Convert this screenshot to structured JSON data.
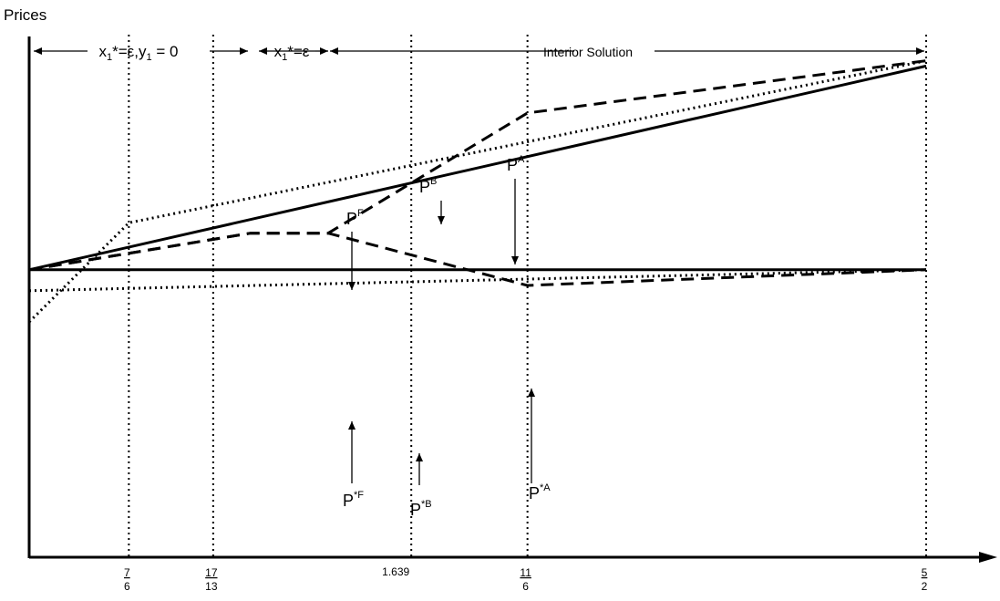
{
  "chart_data": {
    "type": "line",
    "title": "",
    "ylabel": "Prices",
    "xlabel": "",
    "xlim": [
      1,
      2.5
    ],
    "ylim": [
      0,
      1
    ],
    "grid": false,
    "x_ticks": [
      {
        "value": 1.1667,
        "num": "7",
        "den": "6"
      },
      {
        "value": 1.3077,
        "num": "17",
        "den": "13"
      },
      {
        "value": 1.639,
        "plain": "1.639"
      },
      {
        "value": 1.8333,
        "num": "11",
        "den": "6"
      },
      {
        "value": 2.5,
        "num": "5",
        "den": "2"
      }
    ],
    "vertical_guides": [
      1.1667,
      1.3077,
      1.639,
      1.8333,
      2.5
    ],
    "regions": [
      {
        "label_main": "x",
        "label_sub": "1",
        "label_rest": "*=ε,y",
        "label_sub2": "1",
        "label_tail": " = 0",
        "from": 1.0,
        "to": 1.1667
      },
      {
        "label_main": "x",
        "label_sub": "1",
        "label_rest": "*=ε",
        "from": 1.1667,
        "to": 1.3077
      },
      {
        "label_main": "Interior Solution",
        "from": 1.3077,
        "to": 2.5
      }
    ],
    "series": [
      {
        "name": "F",
        "label_base": "P",
        "label_sup": "F",
        "style": "solid",
        "points": [
          [
            1.0,
            0.55
          ],
          [
            2.5,
            0.94
          ]
        ]
      },
      {
        "name": "B",
        "label_base": "P",
        "label_sup": "B",
        "style": "dotted",
        "points": [
          [
            1.0,
            0.45
          ],
          [
            1.1667,
            0.64
          ],
          [
            2.5,
            0.95
          ]
        ]
      },
      {
        "name": "A",
        "label_base": "P",
        "label_sup": "A",
        "style": "dashed",
        "points": [
          [
            1.0,
            0.55
          ],
          [
            1.37,
            0.62
          ],
          [
            1.5,
            0.62
          ],
          [
            1.8333,
            0.85
          ],
          [
            2.5,
            0.95
          ]
        ]
      },
      {
        "name": "*F",
        "label_base": "P",
        "label_sup": "*F",
        "style": "solid",
        "points": [
          [
            1.0,
            0.55
          ],
          [
            2.5,
            0.55
          ]
        ]
      },
      {
        "name": "*B",
        "label_base": "P",
        "label_sup": "*B",
        "style": "dotted",
        "points": [
          [
            1.0,
            0.51
          ],
          [
            2.5,
            0.55
          ]
        ]
      },
      {
        "name": "*A",
        "label_base": "P",
        "label_sup": "*A",
        "style": "dashed",
        "points": [
          [
            1.0,
            0.55
          ],
          [
            1.37,
            0.62
          ],
          [
            1.5,
            0.62
          ],
          [
            1.8333,
            0.52
          ],
          [
            2.5,
            0.55
          ]
        ]
      }
    ]
  }
}
